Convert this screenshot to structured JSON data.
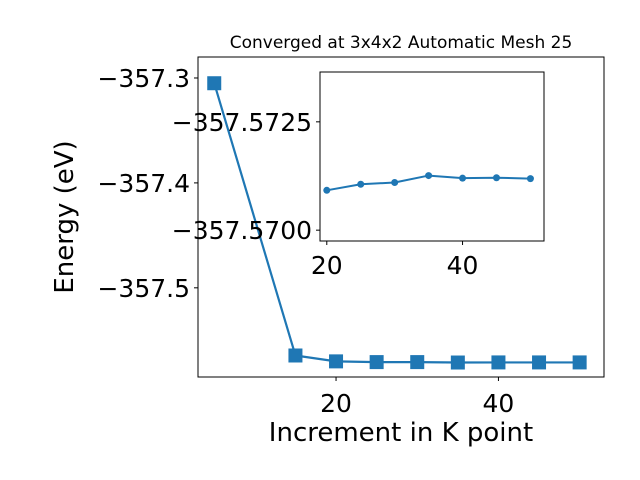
{
  "chart_data": [
    {
      "type": "line",
      "title": "Converged at 3x4x2 Automatic Mesh 25",
      "xlabel": "Increment in K point",
      "ylabel": "Energy (eV)",
      "x": [
        5,
        15,
        20,
        25,
        30,
        35,
        40,
        45,
        50
      ],
      "series": [
        {
          "values": [
            -357.305,
            -357.5645,
            -357.5701,
            -357.5708,
            -357.5708,
            -357.5712,
            -357.5711,
            -357.5711,
            -357.5711
          ],
          "marker": "square",
          "color": "#1f77b4"
        }
      ],
      "xlim": [
        3,
        53
      ],
      "ylim": [
        -357.585,
        -357.28
      ],
      "xticks": [
        20,
        40
      ],
      "xtick_labels": [
        "20",
        "40"
      ],
      "yticks": [
        -357.3,
        -357.4,
        -357.5
      ],
      "ytick_labels": [
        "−357.3",
        "−357.4",
        "−357.5"
      ],
      "grid": false
    },
    {
      "type": "line",
      "role": "inset",
      "x": [
        20,
        25,
        30,
        35,
        40,
        45,
        50
      ],
      "series": [
        {
          "values": [
            -357.57092,
            -357.57106,
            -357.5711,
            -357.57126,
            -357.5712,
            -357.57121,
            -357.57119
          ],
          "marker": "circle",
          "color": "#1f77b4"
        }
      ],
      "xlim": [
        19,
        52
      ],
      "ylim": [
        -357.56975,
        -357.57365
      ],
      "xticks": [
        20,
        40
      ],
      "xtick_labels": [
        "20",
        "40"
      ],
      "yticks": [
        -357.5725,
        -357.57
      ],
      "ytick_labels": [
        "−357.5725",
        "−357.5700"
      ],
      "grid": false
    }
  ]
}
